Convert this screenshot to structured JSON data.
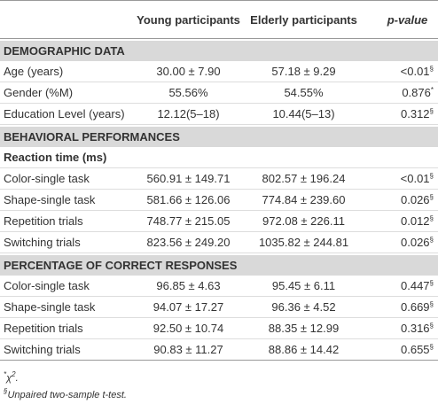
{
  "table": {
    "columns": [
      "Young participants",
      "Elderly participants",
      "p-value"
    ],
    "sections": [
      {
        "title": "DEMOGRAPHIC DATA",
        "rows": [
          {
            "label": "Age (years)",
            "young": "30.00 ± 7.90",
            "elderly": "57.18 ± 9.29",
            "p": "<0.01",
            "note": "§"
          },
          {
            "label": "Gender (%M)",
            "young": "55.56%",
            "elderly": "54.55%",
            "p": "0.876",
            "note": "*"
          },
          {
            "label": "Education Level (years)",
            "young": "12.12(5–18)",
            "elderly": "10.44(5–13)",
            "p": "0.312",
            "note": "§"
          }
        ]
      },
      {
        "title": "BEHAVIORAL PERFORMANCES",
        "subtitle": "Reaction time (ms)",
        "rows": [
          {
            "label": "Color-single task",
            "young": "560.91 ± 149.71",
            "elderly": "802.57 ± 196.24",
            "p": "<0.01",
            "note": "§"
          },
          {
            "label": "Shape-single task",
            "young": "581.66 ± 126.06",
            "elderly": "774.84 ± 239.60",
            "p": "0.026",
            "note": "§"
          },
          {
            "label": "Repetition trials",
            "young": "748.77 ± 215.05",
            "elderly": "972.08 ± 226.11",
            "p": "0.012",
            "note": "§"
          },
          {
            "label": "Switching trials",
            "young": "823.56 ± 249.20",
            "elderly": "1035.82 ± 244.81",
            "p": "0.026",
            "note": "§"
          }
        ]
      },
      {
        "title": "PERCENTAGE OF CORRECT RESPONSES",
        "rows": [
          {
            "label": "Color-single task",
            "young": "96.85 ± 4.63",
            "elderly": "95.45 ± 6.11",
            "p": "0.447",
            "note": "§"
          },
          {
            "label": "Shape-single task",
            "young": "94.07 ± 17.27",
            "elderly": "96.36 ± 4.52",
            "p": "0.669",
            "note": "§"
          },
          {
            "label": "Repetition trials",
            "young": "92.50 ± 10.74",
            "elderly": "88.35 ± 12.99",
            "p": "0.316",
            "note": "§"
          },
          {
            "label": "Switching trials",
            "young": "90.83 ± 11.27",
            "elderly": "88.86 ± 14.42",
            "p": "0.655",
            "note": "§"
          }
        ]
      }
    ]
  },
  "footnotes": [
    {
      "mark": "*",
      "symbol": "χ",
      "power": "2",
      "end": "."
    },
    {
      "mark": "§",
      "text": "Unpaired two-sample t-test."
    }
  ]
}
